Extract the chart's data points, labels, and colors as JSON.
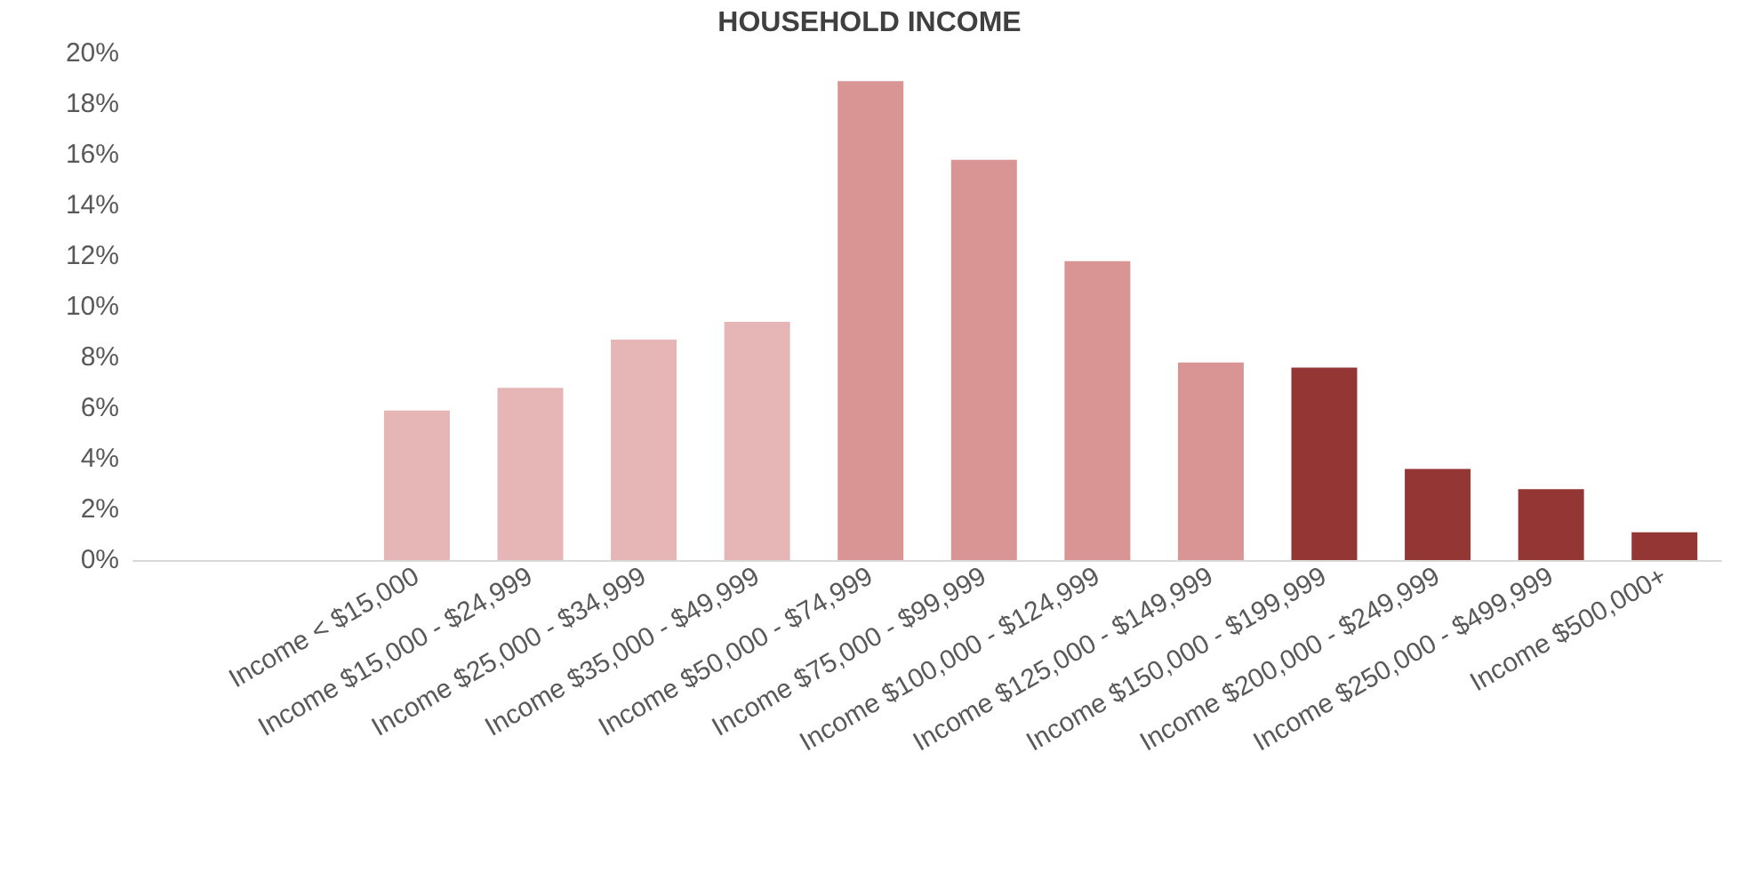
{
  "chart_data": {
    "type": "bar",
    "title": "HOUSEHOLD INCOME",
    "categories": [
      null,
      null,
      "Income < $15,000",
      "Income $15,000 - $24,999",
      "Income $25,000 - $34,999",
      "Income $35,000 - $49,999",
      "Income $50,000 - $74,999",
      "Income $75,000 - $99,999",
      "Income $100,000 - $124,999",
      "Income $125,000 - $149,999",
      "Income $150,000 - $199,999",
      "Income $200,000 - $249,999",
      "Income $250,000 - $499,999",
      "Income $500,000+"
    ],
    "values": [
      null,
      null,
      5.9,
      6.8,
      8.7,
      9.4,
      18.9,
      15.8,
      11.8,
      7.8,
      7.6,
      3.6,
      2.8,
      1.1
    ],
    "colors": [
      "#e6b5b5",
      "#e6b5b5",
      "#e6b5b5",
      "#e6b5b5",
      "#e6b5b5",
      "#e6b5b5",
      "#d99494",
      "#d99494",
      "#d99494",
      "#d99494",
      "#943634",
      "#943634",
      "#943634",
      "#943634"
    ],
    "ylim": [
      0,
      20
    ],
    "yticks": [
      {
        "value": 0,
        "label": "0%"
      },
      {
        "value": 2,
        "label": "2%"
      },
      {
        "value": 4,
        "label": "4%"
      },
      {
        "value": 6,
        "label": "6%"
      },
      {
        "value": 8,
        "label": "8%"
      },
      {
        "value": 10,
        "label": "10%"
      },
      {
        "value": 12,
        "label": "12%"
      },
      {
        "value": 14,
        "label": "14%"
      },
      {
        "value": 16,
        "label": "16%"
      },
      {
        "value": 18,
        "label": "18%"
      },
      {
        "value": 20,
        "label": "20%"
      }
    ],
    "grid": false
  }
}
